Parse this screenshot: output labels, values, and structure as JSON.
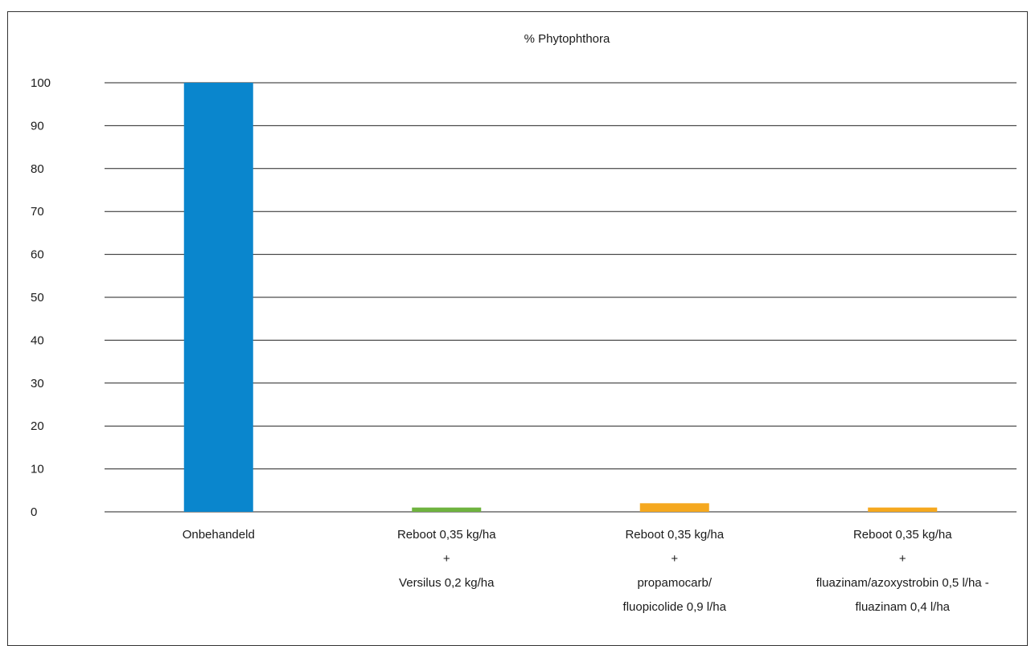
{
  "chart_data": {
    "type": "bar",
    "title": "% Phytophthora",
    "xlabel": "",
    "ylabel": "",
    "ylim": [
      0,
      100
    ],
    "yticks": [
      0,
      10,
      20,
      30,
      40,
      50,
      60,
      70,
      80,
      90,
      100
    ],
    "grid": true,
    "legend": "none",
    "categories": [
      [
        "Onbehandeld"
      ],
      [
        "Reboot 0,35 kg/ha",
        "+",
        "Versilus 0,2 kg/ha"
      ],
      [
        "Reboot 0,35 kg/ha",
        "+",
        "propamocarb/",
        "fluopicolide 0,9 l/ha"
      ],
      [
        "Reboot 0,35 kg/ha",
        "+",
        "fluazinam/azoxystrobin 0,5 l/ha -",
        "fluazinam 0,4 l/ha"
      ]
    ],
    "values": [
      100,
      1,
      2,
      1
    ],
    "colors": [
      "#0a86cd",
      "#6fb33f",
      "#f5a81f",
      "#f5a81f"
    ]
  }
}
